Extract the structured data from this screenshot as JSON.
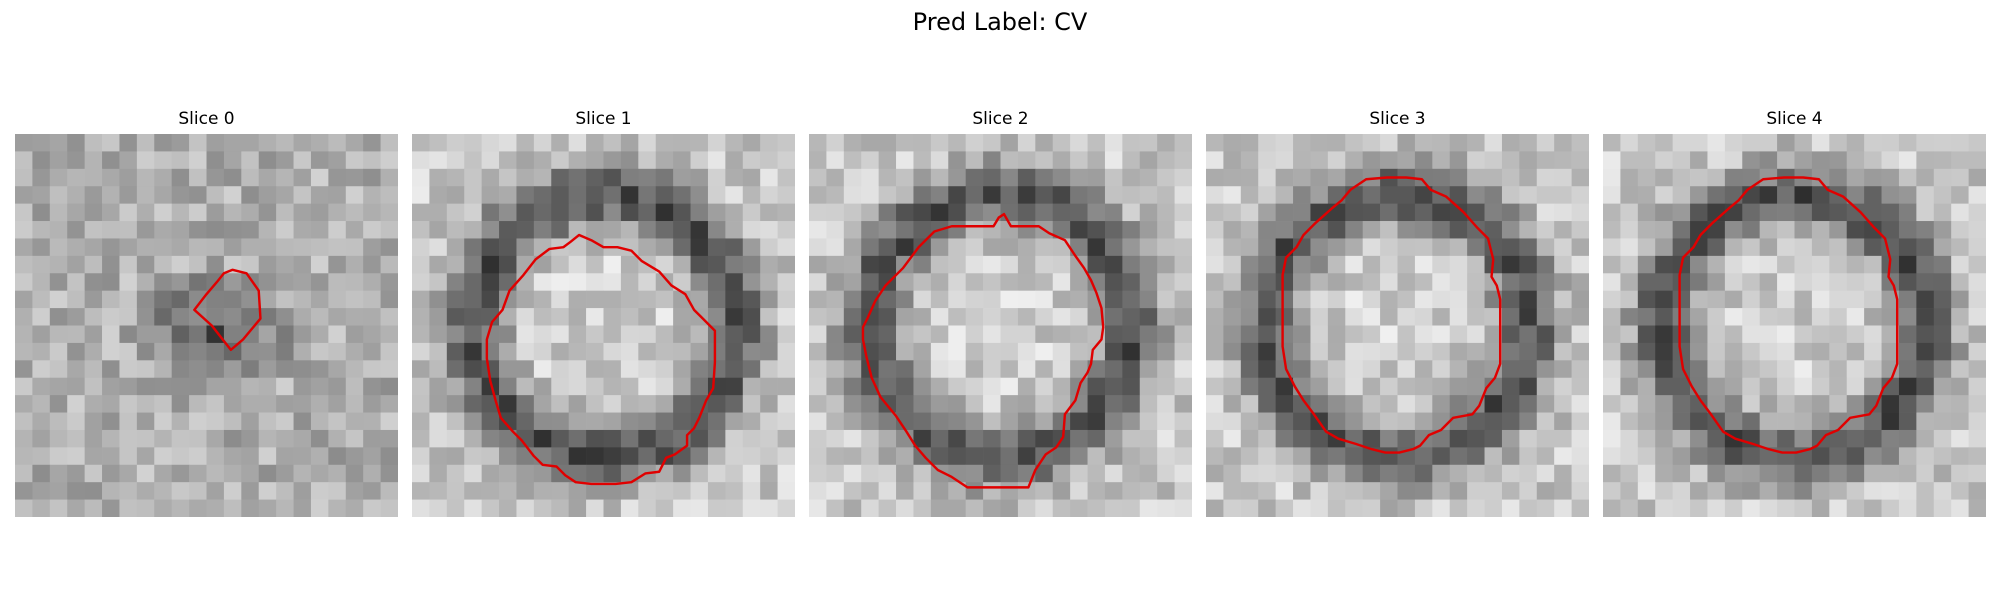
{
  "figure": {
    "title": "Pred Label: CV",
    "contour_color": "#e00000"
  },
  "panels": [
    {
      "title": "Slice 0",
      "contour": [
        [
          12,
          8
        ],
        [
          12.5,
          7.8
        ],
        [
          13.3,
          8
        ],
        [
          14,
          9
        ],
        [
          14.1,
          10.6
        ],
        [
          13.1,
          11.8
        ],
        [
          12.4,
          12.4
        ],
        [
          11.3,
          11
        ],
        [
          10.3,
          10.1
        ],
        [
          11,
          9.2
        ],
        [
          11.6,
          8.5
        ]
      ]
    },
    {
      "title": "Slice 1",
      "contour": [
        [
          4.6,
          10.8
        ],
        [
          5.2,
          10.1
        ],
        [
          5.6,
          9
        ],
        [
          6.4,
          8.1
        ],
        [
          7.1,
          7.2
        ],
        [
          7.9,
          6.6
        ],
        [
          8.7,
          6.5
        ],
        [
          9.1,
          6.2
        ],
        [
          9.6,
          5.8
        ],
        [
          10.3,
          6.1
        ],
        [
          11,
          6.5
        ],
        [
          11.8,
          6.5
        ],
        [
          12.6,
          6.7
        ],
        [
          13.2,
          7.3
        ],
        [
          14.2,
          7.9
        ],
        [
          14.9,
          8.7
        ],
        [
          15.7,
          9.2
        ],
        [
          16.2,
          10.1
        ],
        [
          16.6,
          10.5
        ],
        [
          17.4,
          11.3
        ],
        [
          17.4,
          13.1
        ],
        [
          17.3,
          14.6
        ],
        [
          16.9,
          15.3
        ],
        [
          16.5,
          16.3
        ],
        [
          16.2,
          16.9
        ],
        [
          15.8,
          17.3
        ],
        [
          15.8,
          17.9
        ],
        [
          15.1,
          18.4
        ],
        [
          14.6,
          18.6
        ],
        [
          14.2,
          19.4
        ],
        [
          13.4,
          19.5
        ],
        [
          12.6,
          20
        ],
        [
          11.7,
          20.1
        ],
        [
          10.9,
          20.1
        ],
        [
          10.3,
          20.1
        ],
        [
          9.4,
          20
        ],
        [
          8.8,
          19.6
        ],
        [
          8.3,
          19.1
        ],
        [
          7.5,
          19
        ],
        [
          7,
          18.5
        ],
        [
          6.3,
          17.6
        ],
        [
          5.8,
          17.1
        ],
        [
          5.1,
          16.3
        ],
        [
          4.8,
          15.3
        ],
        [
          4.5,
          14.2
        ],
        [
          4.3,
          12.9
        ],
        [
          4.3,
          11.8
        ]
      ]
    },
    {
      "title": "Slice 2",
      "contour": [
        [
          3.8,
          9.6
        ],
        [
          4.4,
          8.7
        ],
        [
          5.4,
          7.7
        ],
        [
          6.3,
          6.5
        ],
        [
          7.2,
          5.6
        ],
        [
          8.2,
          5.3
        ],
        [
          9.1,
          5.3
        ],
        [
          10.1,
          5.3
        ],
        [
          10.6,
          5.3
        ],
        [
          10.9,
          4.8
        ],
        [
          11.2,
          4.6
        ],
        [
          11.6,
          5.3
        ],
        [
          12.4,
          5.3
        ],
        [
          13.2,
          5.3
        ],
        [
          13.8,
          5.7
        ],
        [
          14.7,
          6.1
        ],
        [
          15.3,
          7
        ],
        [
          15.8,
          7.7
        ],
        [
          16.2,
          8.4
        ],
        [
          16.5,
          9.1
        ],
        [
          16.8,
          10
        ],
        [
          16.9,
          11.1
        ],
        [
          16.8,
          11.8
        ],
        [
          16.3,
          12.4
        ],
        [
          16.2,
          13.2
        ],
        [
          16,
          13.7
        ],
        [
          15.6,
          14.3
        ],
        [
          15.3,
          15.3
        ],
        [
          14.7,
          16.1
        ],
        [
          14.6,
          17.4
        ],
        [
          14.2,
          18
        ],
        [
          13.6,
          18.4
        ],
        [
          13,
          19.3
        ],
        [
          12.6,
          20.3
        ],
        [
          11.8,
          20.3
        ],
        [
          11,
          20.3
        ],
        [
          10.2,
          20.3
        ],
        [
          9.1,
          20.3
        ],
        [
          8.2,
          19.7
        ],
        [
          7.4,
          19.3
        ],
        [
          6.7,
          18.6
        ],
        [
          6.1,
          17.9
        ],
        [
          5.6,
          17.1
        ],
        [
          5,
          16.2
        ],
        [
          4.1,
          15.1
        ],
        [
          3.6,
          14
        ],
        [
          3.3,
          12.8
        ],
        [
          3.1,
          11.8
        ],
        [
          3.1,
          11.1
        ],
        [
          3.4,
          10.5
        ]
      ]
    },
    {
      "title": "Slice 3",
      "contour": [
        [
          4.6,
          7.1
        ],
        [
          5.2,
          6.5
        ],
        [
          5.6,
          5.8
        ],
        [
          6.3,
          5.1
        ],
        [
          7.2,
          4.3
        ],
        [
          7.8,
          3.8
        ],
        [
          8.3,
          3.2
        ],
        [
          9.2,
          2.6
        ],
        [
          10.4,
          2.5
        ],
        [
          11.5,
          2.5
        ],
        [
          12.4,
          2.6
        ],
        [
          12.9,
          3.2
        ],
        [
          13.8,
          3.6
        ],
        [
          14.8,
          4.5
        ],
        [
          15.6,
          5.4
        ],
        [
          16.2,
          6
        ],
        [
          16.5,
          7.2
        ],
        [
          16.4,
          8.2
        ],
        [
          16.7,
          8.7
        ],
        [
          16.9,
          9.5
        ],
        [
          16.9,
          11
        ],
        [
          16.9,
          12.3
        ],
        [
          16.9,
          13.2
        ],
        [
          16.6,
          14
        ],
        [
          16.1,
          14.6
        ],
        [
          15.7,
          15.6
        ],
        [
          15.3,
          16.1
        ],
        [
          14.2,
          16.3
        ],
        [
          13.5,
          17
        ],
        [
          12.8,
          17.3
        ],
        [
          12.3,
          17.9
        ],
        [
          11.9,
          18.1
        ],
        [
          11.1,
          18.3
        ],
        [
          10.3,
          18.3
        ],
        [
          9.5,
          18.1
        ],
        [
          8.6,
          17.8
        ],
        [
          7.6,
          17.5
        ],
        [
          6.9,
          17.1
        ],
        [
          6.2,
          16.1
        ],
        [
          5.6,
          15.3
        ],
        [
          5.1,
          14.5
        ],
        [
          4.6,
          13.5
        ],
        [
          4.4,
          12.2
        ],
        [
          4.4,
          10.8
        ],
        [
          4.4,
          9.3
        ],
        [
          4.4,
          8.1
        ]
      ]
    },
    {
      "title": "Slice 4",
      "contour": [
        [
          4.6,
          7.1
        ],
        [
          5.2,
          6.5
        ],
        [
          5.6,
          5.8
        ],
        [
          6.3,
          5.1
        ],
        [
          7.2,
          4.3
        ],
        [
          7.8,
          3.8
        ],
        [
          8.3,
          3.2
        ],
        [
          9.2,
          2.6
        ],
        [
          10.4,
          2.5
        ],
        [
          11.5,
          2.5
        ],
        [
          12.4,
          2.6
        ],
        [
          12.9,
          3.2
        ],
        [
          13.8,
          3.6
        ],
        [
          14.8,
          4.5
        ],
        [
          15.6,
          5.4
        ],
        [
          16.2,
          6
        ],
        [
          16.5,
          7.2
        ],
        [
          16.4,
          8.2
        ],
        [
          16.7,
          8.7
        ],
        [
          16.9,
          9.5
        ],
        [
          16.9,
          11
        ],
        [
          16.9,
          12.3
        ],
        [
          16.9,
          13.2
        ],
        [
          16.6,
          14
        ],
        [
          16.1,
          14.6
        ],
        [
          15.7,
          15.6
        ],
        [
          15.3,
          16.1
        ],
        [
          14.2,
          16.3
        ],
        [
          13.5,
          17
        ],
        [
          12.8,
          17.3
        ],
        [
          12.3,
          17.9
        ],
        [
          11.9,
          18.1
        ],
        [
          11.1,
          18.3
        ],
        [
          10.3,
          18.3
        ],
        [
          9.5,
          18.1
        ],
        [
          8.6,
          17.8
        ],
        [
          7.6,
          17.5
        ],
        [
          6.9,
          17.1
        ],
        [
          6.2,
          16.1
        ],
        [
          5.6,
          15.3
        ],
        [
          5.1,
          14.5
        ],
        [
          4.6,
          13.5
        ],
        [
          4.4,
          12.2
        ],
        [
          4.4,
          10.8
        ],
        [
          4.4,
          9.3
        ],
        [
          4.4,
          8.1
        ]
      ]
    }
  ]
}
